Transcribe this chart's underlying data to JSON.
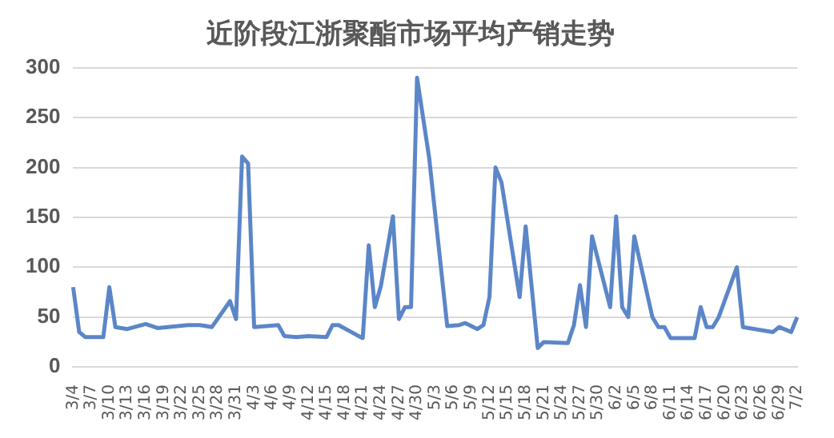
{
  "chart_data": {
    "type": "line",
    "title": "近阶段江浙聚酯市场平均产销走势",
    "categories": [
      "3/4",
      null,
      null,
      "3/7",
      null,
      null,
      "3/10",
      null,
      null,
      "3/13",
      null,
      null,
      "3/16",
      null,
      null,
      "3/19",
      null,
      null,
      "3/22",
      null,
      null,
      "3/25",
      null,
      null,
      "3/28",
      null,
      null,
      "3/31",
      null,
      null,
      "4/3",
      null,
      null,
      "4/6",
      null,
      null,
      "4/9",
      null,
      null,
      "4/12",
      null,
      null,
      "4/15",
      null,
      null,
      "4/18",
      null,
      null,
      "4/21",
      null,
      null,
      "4/24",
      null,
      null,
      "4/27",
      null,
      null,
      "4/30",
      null,
      null,
      "5/3",
      null,
      null,
      "5/6",
      null,
      null,
      "5/9",
      null,
      null,
      "5/12",
      null,
      null,
      "5/15",
      null,
      null,
      "5/18",
      null,
      null,
      "5/21",
      null,
      null,
      "5/24",
      null,
      null,
      "5/27",
      null,
      null,
      "5/30",
      null,
      null,
      "6/2",
      null,
      null,
      "6/5",
      null,
      null,
      "6/8",
      null,
      null,
      "6/11",
      null,
      null,
      "6/14",
      null,
      null,
      "6/17",
      null,
      null,
      "6/20",
      null,
      null,
      "6/23",
      null,
      null,
      "6/26",
      null,
      null,
      "6/29",
      null,
      null,
      "7/2"
    ],
    "series": [
      {
        "color": "#5b86c8",
        "values": [
          80,
          35,
          30,
          null,
          null,
          30,
          80,
          40,
          null,
          38,
          null,
          null,
          43,
          null,
          39,
          null,
          null,
          null,
          null,
          42,
          null,
          42,
          null,
          40,
          null,
          null,
          66,
          48,
          211,
          204,
          40,
          null,
          null,
          null,
          42,
          31,
          null,
          30,
          null,
          31,
          null,
          null,
          30,
          42,
          42,
          null,
          null,
          32,
          29,
          122,
          60,
          81,
          null,
          151,
          48,
          60,
          60,
          290,
          null,
          210,
          null,
          null,
          41,
          null,
          42,
          44,
          null,
          38,
          42,
          70,
          200,
          185,
          null,
          null,
          70,
          141,
          null,
          19,
          25,
          null,
          null,
          null,
          24,
          42,
          82,
          40,
          131,
          null,
          null,
          60,
          151,
          60,
          50,
          131,
          null,
          null,
          50,
          40,
          40,
          29,
          null,
          null,
          null,
          29,
          60,
          40,
          40,
          50,
          null,
          null,
          100,
          40,
          null,
          null,
          null,
          null,
          35,
          40,
          null,
          35,
          50
        ]
      }
    ],
    "ylim": [
      0,
      300
    ],
    "yticks": [
      0,
      50,
      100,
      150,
      200,
      250,
      300
    ],
    "grid": "y",
    "legend": false,
    "marker": "none",
    "line_style": "solid"
  }
}
